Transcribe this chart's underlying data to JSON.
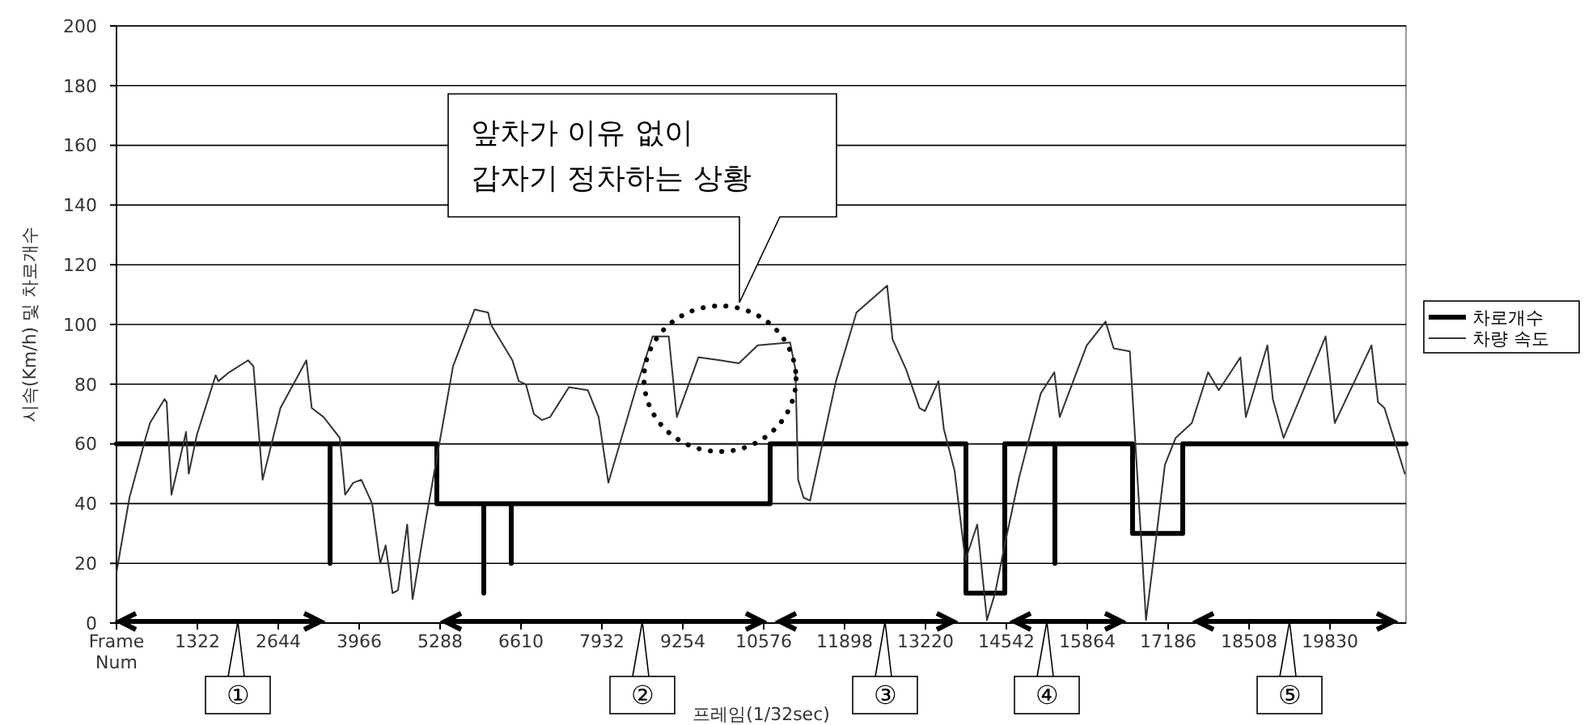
{
  "chart_data": {
    "type": "line",
    "xlabel": "프레임(1/32sec)",
    "ylabel": "시속(Km/h) 및 차로개수",
    "xlim": [
      0,
      21073
    ],
    "xticks": [
      {
        "value": 0,
        "label": "Frame Num"
      },
      1322,
      2644,
      3966,
      5288,
      6610,
      7932,
      9254,
      10576,
      11898,
      13220,
      14542,
      15864,
      17186,
      18508,
      19830
    ],
    "ylim": [
      0,
      200
    ],
    "yticks": [
      0,
      20,
      40,
      60,
      80,
      100,
      120,
      140,
      160,
      180,
      200
    ],
    "grid": "y",
    "legend": "right",
    "marker": "none",
    "series": [
      {
        "name": "차로개수",
        "color": "#000000",
        "line_style": "solid",
        "x": [
          0,
          3490,
          3490,
          3490,
          5235,
          5235,
          6002,
          6002,
          6002,
          6451,
          6451,
          6451,
          10682,
          10682,
          13881,
          13881,
          14516,
          14516,
          15335,
          15335,
          15335,
          16604,
          16604,
          17424,
          17424,
          21073
        ],
        "values": [
          60,
          60,
          20,
          60,
          60,
          40,
          40,
          10,
          40,
          40,
          20,
          40,
          40,
          60,
          60,
          10,
          10,
          60,
          60,
          20,
          60,
          60,
          30,
          30,
          60,
          60
        ]
      },
      {
        "name": "차량 속도",
        "color": "#333333",
        "line_style": "solid",
        "x": [
          0,
          212,
          476,
          547,
          785,
          820,
          899,
          1093,
          1137,
          1181,
          1313,
          1621,
          1664,
          1842,
          2150,
          2238,
          2388,
          2679,
          3103,
          3191,
          3384,
          3649,
          3737,
          3869,
          4001,
          4178,
          4310,
          4398,
          4512,
          4600,
          4751,
          4839,
          5059,
          5500,
          5852,
          6073,
          6117,
          6469,
          6575,
          6690,
          6821,
          6954,
          7086,
          7394,
          7702,
          7879,
          8038,
          8496,
          8761,
          9025,
          9157,
          9510,
          9862,
          10171,
          10478,
          11007,
          11095,
          11139,
          11228,
          11334,
          11757,
          12092,
          12594,
          12682,
          12903,
          13123,
          13211,
          13432,
          13520,
          13696,
          13872,
          14066,
          14225,
          14357,
          14533,
          14753,
          15106,
          15326,
          15414,
          15855,
          16163,
          16295,
          16560,
          16824,
          16957,
          17133,
          17309,
          17573,
          17838,
          18014,
          18367,
          18455,
          18808,
          18896,
          19072,
          19759,
          19909,
          20509,
          20615,
          20721,
          21054
        ],
        "values": [
          17,
          42,
          62,
          67,
          75,
          74,
          43,
          60,
          64,
          50,
          63,
          83,
          81,
          84,
          88,
          86,
          48,
          72,
          88,
          72,
          69,
          62,
          43,
          47,
          48,
          40,
          20,
          26,
          10,
          11,
          33,
          8,
          35,
          86,
          105,
          104,
          100,
          88,
          81,
          80,
          70,
          68,
          69,
          79,
          78,
          69,
          47,
          79,
          96,
          96,
          69,
          89,
          88,
          87,
          93,
          94,
          85,
          48,
          42,
          41,
          81,
          104,
          113,
          95,
          85,
          72,
          71,
          81,
          65,
          51,
          21,
          33,
          1,
          10,
          28,
          49,
          77,
          84,
          69,
          93,
          101,
          92,
          91,
          1,
          23,
          53,
          62,
          67,
          84,
          78,
          89,
          69,
          93,
          75,
          62,
          96,
          67,
          93,
          74,
          72,
          50
        ]
      }
    ],
    "annotations": [
      "앞차가 이유 없이\n갑자기 정차하는 상황",
      "①",
      "②",
      "③",
      "④",
      "⑤"
    ]
  }
}
